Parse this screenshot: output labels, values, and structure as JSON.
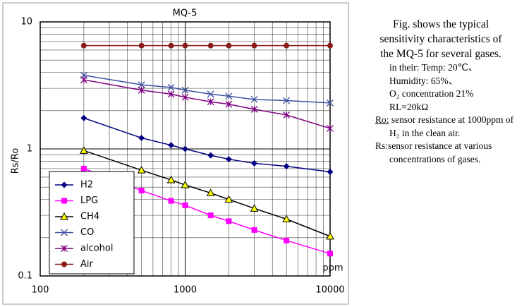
{
  "chart_data": {
    "type": "line",
    "title": "MQ-5",
    "y_label": "Rs/Ro",
    "x_unit_label": "ppm",
    "xscale": "log",
    "yscale": "log",
    "xlim": [
      100,
      10000
    ],
    "xticks": [
      100,
      1000,
      10000
    ],
    "ylim": [
      0.1,
      10
    ],
    "yticks": [
      0.1,
      1,
      10
    ],
    "grid": true,
    "minor_grid": true,
    "legend": "lower left",
    "x": [
      200,
      500,
      800,
      1000,
      1500,
      2000,
      3000,
      5000,
      10000
    ],
    "series": [
      {
        "name": "H2",
        "color": "#000080",
        "marker": "diamond",
        "values": [
          1.75,
          1.22,
          1.07,
          1.0,
          0.89,
          0.83,
          0.77,
          0.73,
          0.66
        ]
      },
      {
        "name": "LPG",
        "color": "#ff00ff",
        "marker": "square",
        "values": [
          0.7,
          0.47,
          0.39,
          0.36,
          0.3,
          0.27,
          0.23,
          0.19,
          0.15
        ]
      },
      {
        "name": "CH4",
        "color": "#ffff00",
        "line_color": "#000000",
        "marker": "triangle",
        "values": [
          0.97,
          0.68,
          0.57,
          0.52,
          0.45,
          0.4,
          0.34,
          0.28,
          0.205
        ]
      },
      {
        "name": "CO",
        "color": "#3c50a0",
        "marker": "x",
        "values": [
          3.8,
          3.2,
          3.05,
          2.9,
          2.7,
          2.6,
          2.45,
          2.4,
          2.3
        ]
      },
      {
        "name": "alcohol",
        "color": "#800080",
        "marker": "asterisk",
        "values": [
          3.5,
          2.9,
          2.7,
          2.55,
          2.35,
          2.25,
          2.05,
          1.85,
          1.45
        ]
      },
      {
        "name": "Air",
        "color": "#8b1a1a",
        "marker": "circle",
        "values": [
          6.5,
          6.5,
          6.5,
          6.5,
          6.5,
          6.5,
          6.5,
          6.5,
          6.5
        ]
      }
    ]
  },
  "caption": {
    "heading": [
      "Fig. shows the typical",
      "sensitivity characteristics of",
      "the MQ-5 for several gases."
    ],
    "conditions": [
      "in their: Temp: 20℃、",
      "Humidity: 65%、",
      "O₂ concentration 21%",
      "RL=20kΩ"
    ],
    "definitions": [
      {
        "term": "Ro:",
        "text": " sensor resistance at 1000ppm of",
        "more": "H₂ in the clean air."
      },
      {
        "term": "Rs:",
        "text": "sensor resistance at various",
        "more": "concentrations of gases."
      }
    ]
  }
}
